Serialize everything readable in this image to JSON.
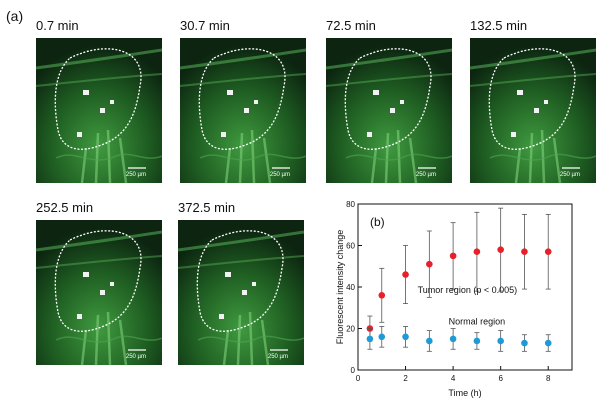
{
  "figure": {
    "panel_label": "(a)",
    "scale_bar_label": "250 µm",
    "frames": [
      {
        "time_label": "0.7 min"
      },
      {
        "time_label": "30.7 min"
      },
      {
        "time_label": "72.5 min"
      },
      {
        "time_label": "132.5 min"
      },
      {
        "time_label": "252.5 min"
      },
      {
        "time_label": "372.5 min"
      }
    ]
  },
  "chart_data": {
    "type": "scatter",
    "panel_label": "(b)",
    "xlabel": "Time (h)",
    "ylabel": "Fluorescent intensity change",
    "xlim": [
      0,
      9
    ],
    "ylim": [
      0,
      80
    ],
    "xticks": [
      0,
      2,
      4,
      6,
      8
    ],
    "yticks": [
      0,
      20,
      40,
      60,
      80
    ],
    "series": [
      {
        "name": "Tumor region (p < 0.005)",
        "color": "#e8202a",
        "x": [
          0.5,
          1,
          2,
          3,
          4,
          5,
          6,
          7,
          8
        ],
        "y": [
          20,
          36,
          46,
          51,
          55,
          57,
          58,
          57,
          57
        ],
        "err": [
          6,
          13,
          14,
          16,
          16,
          19,
          20,
          18,
          18
        ]
      },
      {
        "name": "Normal region",
        "color": "#1e9ad6",
        "x": [
          0.5,
          1,
          2,
          3,
          4,
          5,
          6,
          7,
          8
        ],
        "y": [
          15,
          16,
          16,
          14,
          15,
          14,
          14,
          13,
          13
        ],
        "err": [
          5,
          5,
          5,
          5,
          5,
          4,
          5,
          4,
          4
        ]
      }
    ]
  }
}
